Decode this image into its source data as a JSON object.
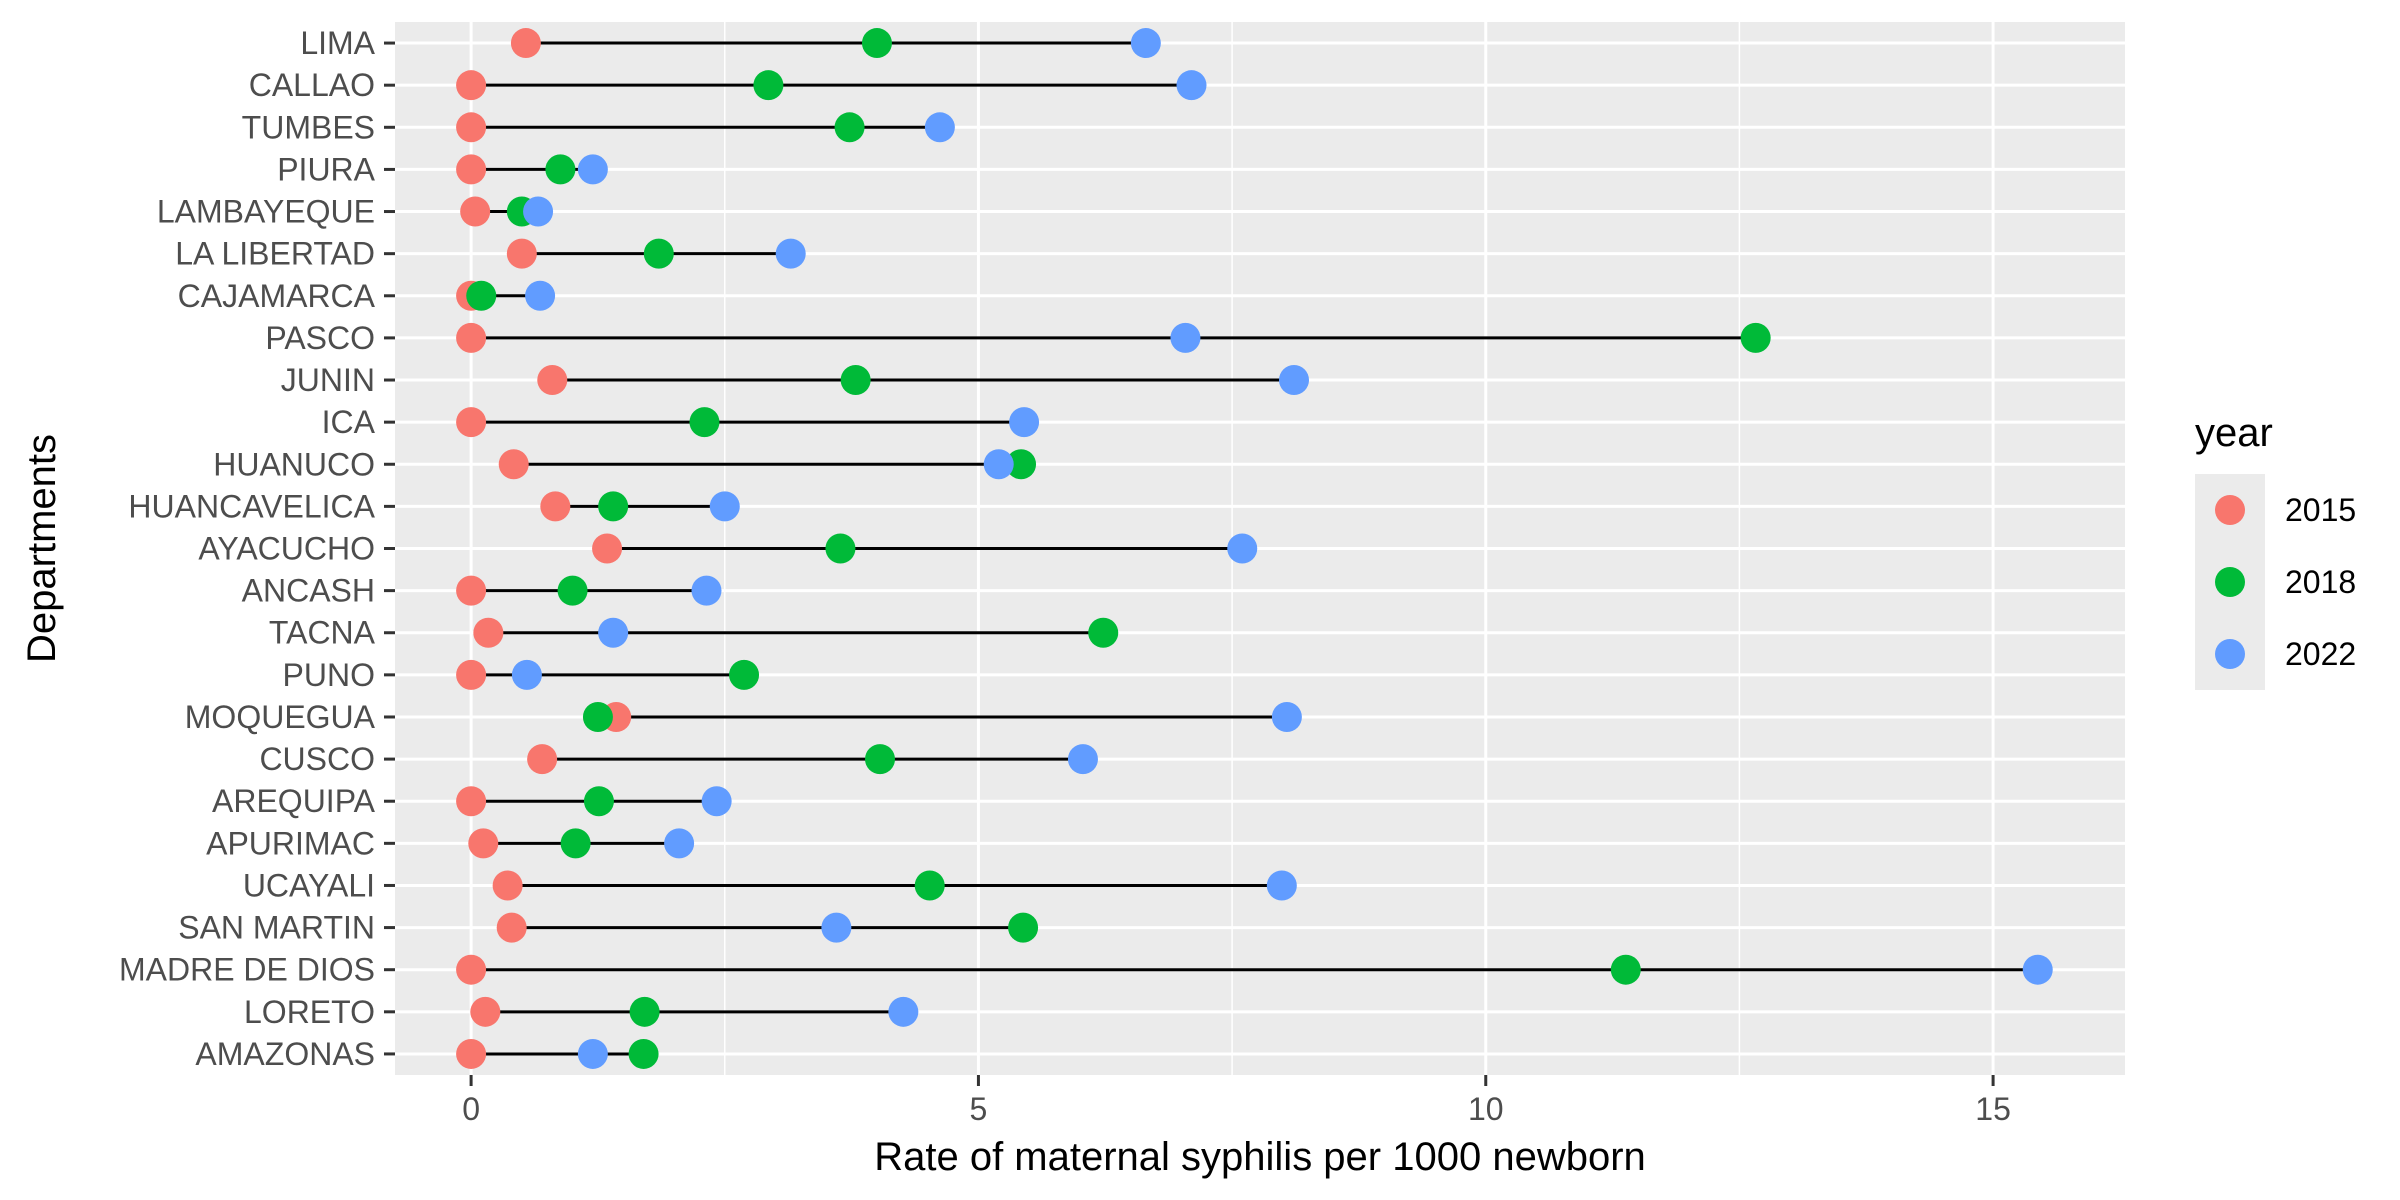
{
  "chart_data": {
    "type": "dumbbell",
    "xlabel": "Rate of maternal syphilis per 1000 newborn",
    "ylabel": "Departments",
    "xlim": [
      -0.75,
      16.3
    ],
    "x_ticks": [
      0,
      5,
      10,
      15
    ],
    "x_tick_labels": [
      "0",
      "5",
      "10",
      "15"
    ],
    "grid": true,
    "legend": {
      "title": "year",
      "placement": "right",
      "entries": [
        {
          "label": "2015",
          "color": "#F8766D"
        },
        {
          "label": "2018",
          "color": "#00BA38"
        },
        {
          "label": "2022",
          "color": "#619CFF"
        }
      ]
    },
    "categories": [
      "LIMA",
      "CALLAO",
      "TUMBES",
      "PIURA",
      "LAMBAYEQUE",
      "LA LIBERTAD",
      "CAJAMARCA",
      "PASCO",
      "JUNIN",
      "ICA",
      "HUANUCO",
      "HUANCAVELICA",
      "AYACUCHO",
      "ANCASH",
      "TACNA",
      "PUNO",
      "MOQUEGUA",
      "CUSCO",
      "AREQUIPA",
      "APURIMAC",
      "UCAYALI",
      "SAN MARTIN",
      "MADRE DE DIOS",
      "LORETO",
      "AMAZONAS"
    ],
    "series": [
      {
        "name": "2015",
        "color": "#F8766D",
        "values": [
          0.54,
          0.0,
          0.0,
          0.0,
          0.04,
          0.5,
          0.0,
          0.0,
          0.8,
          0.0,
          0.42,
          0.83,
          1.34,
          0.0,
          0.17,
          0.0,
          1.43,
          0.7,
          0.0,
          0.12,
          0.36,
          0.4,
          0.0,
          0.14,
          0.0
        ]
      },
      {
        "name": "2018",
        "color": "#00BA38",
        "values": [
          4.0,
          2.93,
          3.73,
          0.88,
          0.5,
          1.85,
          0.1,
          12.66,
          3.79,
          2.3,
          5.42,
          1.4,
          3.64,
          1.0,
          6.23,
          2.69,
          1.25,
          4.03,
          1.26,
          1.03,
          4.52,
          5.44,
          11.38,
          1.71,
          1.7
        ]
      },
      {
        "name": "2022",
        "color": "#619CFF",
        "values": [
          6.65,
          7.1,
          4.62,
          1.2,
          0.66,
          3.15,
          0.68,
          7.04,
          8.11,
          5.45,
          5.2,
          2.5,
          7.6,
          2.32,
          1.4,
          0.55,
          8.04,
          6.03,
          2.42,
          2.05,
          7.99,
          3.6,
          15.44,
          4.26,
          1.2
        ]
      }
    ]
  }
}
